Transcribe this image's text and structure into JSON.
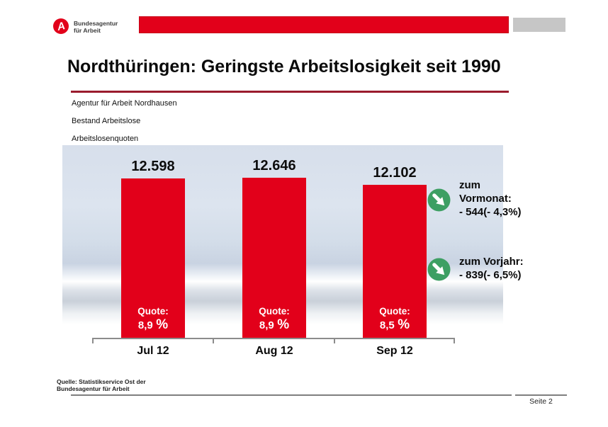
{
  "slide": {
    "logo": {
      "line1": "Bundesagentur",
      "line2": "für Arbeit"
    },
    "title": "Nordthüringen: Geringste Arbeitslosigkeit seit 1990",
    "subtitle_lines": [
      "Agentur für Arbeit Nordhausen",
      "Bestand Arbeitslose",
      "Arbeitslosenquoten"
    ],
    "footer": {
      "source_line1": "Quelle: Statistikservice Ost der",
      "source_line2": "Bundesagentur für Arbeit",
      "page_label": "Seite 2"
    }
  },
  "chart_data": {
    "type": "bar",
    "title": "Bestand Arbeitslose",
    "categories": [
      "Jul 12",
      "Aug 12",
      "Sep 12"
    ],
    "values": [
      12598,
      12646,
      12102
    ],
    "ylim": [
      0,
      12646
    ],
    "xlabel": "",
    "ylabel": "",
    "grid": false,
    "legend": "none",
    "bar_color": "#e2001a",
    "bars": [
      {
        "category": "Jul 12",
        "value": 12598,
        "value_label": "12.598",
        "quote_label": "Quote:",
        "quote_value": "8,9",
        "quote_unit": "%"
      },
      {
        "category": "Aug 12",
        "value": 12646,
        "value_label": "12.646",
        "quote_label": "Quote:",
        "quote_value": "8,9",
        "quote_unit": "%"
      },
      {
        "category": "Sep 12",
        "value": 12102,
        "value_label": "12.102",
        "quote_label": "Quote:",
        "quote_value": "8,5",
        "quote_unit": "%"
      }
    ],
    "annotations": [
      {
        "icon": "circle-arrow-down-right",
        "lines": [
          "zum",
          "Vormonat:",
          "- 544(- 4,3%)"
        ]
      },
      {
        "icon": "circle-arrow-down-right",
        "lines": [
          "zum Vorjahr:",
          "- 839(- 6,5%)"
        ]
      }
    ]
  },
  "colors": {
    "accent_red": "#e2001a",
    "underline_red": "#9a1b2d",
    "gray_bar": "#c6c6c6",
    "axis_gray": "#8c8c8c",
    "trend_green": "#3d9f63"
  }
}
